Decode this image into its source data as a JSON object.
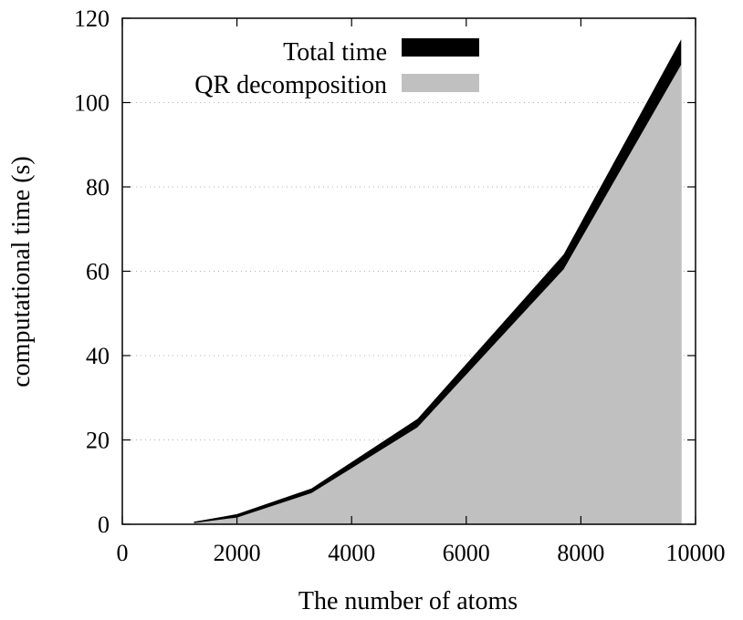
{
  "chart_data": {
    "type": "area",
    "x": [
      0,
      1250,
      2000,
      3300,
      5150,
      7700,
      9750
    ],
    "series": [
      {
        "name": "Total time",
        "color": "#000000",
        "values": [
          0,
          0.6,
          2.4,
          8.5,
          25,
          64,
          115
        ]
      },
      {
        "name": "QR decomposition",
        "color": "#c0c0c0",
        "values": [
          0,
          0.3,
          1.6,
          7.4,
          23,
          60.5,
          109
        ]
      }
    ],
    "xlabel": "The number of atoms",
    "ylabel": "computational time (s)",
    "xlim": [
      0,
      10000
    ],
    "ylim": [
      0,
      120
    ],
    "xticks": [
      "0",
      "2000",
      "4000",
      "6000",
      "8000",
      "10000"
    ],
    "yticks": [
      "0",
      "20",
      "40",
      "60",
      "80",
      "100",
      "120"
    ],
    "grid": "horizontal dotted",
    "legend_position": "top-right"
  }
}
